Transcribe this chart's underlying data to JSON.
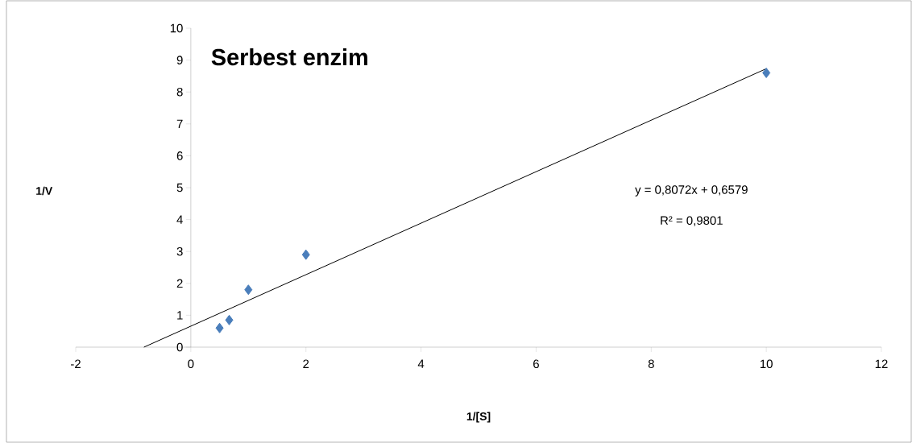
{
  "chart_data": {
    "type": "scatter",
    "title": "Serbest enzim",
    "xlabel": "1/[S]",
    "ylabel": "1/V",
    "annotations": [
      "y = 0,8072x + 0,6579",
      "R² = 0,9801"
    ],
    "series": [
      {
        "color": "#4a7ebb",
        "marker": "diamond",
        "x": [
          0.5,
          0.667,
          1,
          2,
          10
        ],
        "values": [
          0.6,
          0.85,
          1.8,
          2.9,
          8.6
        ]
      },
      {
        "type": "line",
        "color": "#000000",
        "marker": "none",
        "x": [
          -0.815,
          10
        ],
        "values": [
          0,
          8.73
        ]
      }
    ],
    "xlim": [
      -2,
      12
    ],
    "xticks": [
      -2,
      0,
      2,
      4,
      6,
      8,
      10,
      12
    ],
    "ylim": [
      0,
      10
    ],
    "yticks": [
      0,
      1,
      2,
      3,
      4,
      5,
      6,
      7,
      8,
      9,
      10
    ]
  }
}
